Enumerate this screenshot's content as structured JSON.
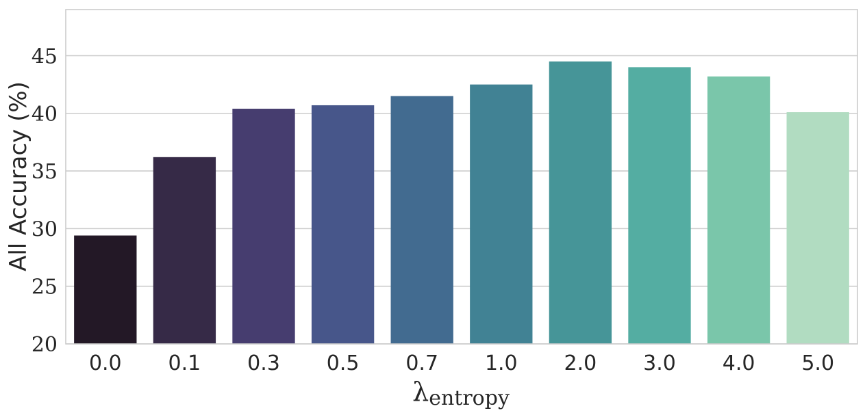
{
  "chart_data": {
    "type": "bar",
    "title": "",
    "xlabel": "λ",
    "xlabel_subscript": "entropy",
    "ylabel": "All Accuracy (%)",
    "categories": [
      "0.0",
      "0.1",
      "0.3",
      "0.5",
      "0.7",
      "1.0",
      "2.0",
      "3.0",
      "4.0",
      "5.0"
    ],
    "values": [
      29.4,
      36.2,
      40.4,
      40.7,
      41.5,
      42.5,
      44.5,
      44.0,
      43.2,
      40.1
    ],
    "colors": [
      "#231826",
      "#362a47",
      "#463d6f",
      "#47568a",
      "#426b90",
      "#418294",
      "#469598",
      "#54ada2",
      "#7ac6aa",
      "#b1dcc1"
    ],
    "ylim": [
      20,
      49
    ],
    "yticks": [
      20,
      25,
      30,
      35,
      40,
      45
    ],
    "grid": "horizontal",
    "legend": "none"
  }
}
